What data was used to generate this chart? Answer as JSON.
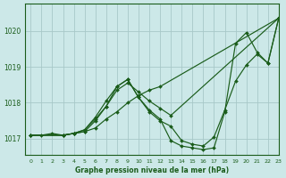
{
  "title": "Graphe pression niveau de la mer (hPa)",
  "bg_color": "#cce8e8",
  "grid_color": "#a8c8c8",
  "line_color": "#1a5c1a",
  "xlim": [
    -0.5,
    23
  ],
  "ylim": [
    1016.55,
    1020.75
  ],
  "yticks": [
    1017,
    1018,
    1019,
    1020
  ],
  "xticks": [
    0,
    1,
    2,
    3,
    4,
    5,
    6,
    7,
    8,
    9,
    10,
    11,
    12,
    13,
    14,
    15,
    16,
    17,
    18,
    19,
    20,
    21,
    22,
    23
  ],
  "series": [
    {
      "x": [
        0,
        1,
        2,
        3,
        4,
        5,
        6,
        7,
        8,
        9,
        10,
        11,
        12,
        23
      ],
      "y": [
        1017.1,
        1017.1,
        1017.15,
        1017.1,
        1017.15,
        1017.2,
        1017.3,
        1017.55,
        1017.75,
        1018.0,
        1018.2,
        1018.35,
        1018.45,
        1020.35
      ]
    },
    {
      "x": [
        0,
        3,
        4,
        5,
        6,
        7,
        8,
        9,
        10,
        11,
        12,
        13,
        23
      ],
      "y": [
        1017.1,
        1017.1,
        1017.15,
        1017.2,
        1017.5,
        1017.9,
        1018.35,
        1018.55,
        1018.3,
        1018.05,
        1017.85,
        1017.65,
        1020.35
      ]
    },
    {
      "x": [
        0,
        3,
        4,
        5,
        6,
        7,
        8,
        9,
        10,
        11,
        12,
        13,
        14,
        15,
        16,
        17,
        18,
        19,
        20,
        21,
        22,
        23
      ],
      "y": [
        1017.1,
        1017.1,
        1017.15,
        1017.25,
        1017.6,
        1018.05,
        1018.45,
        1018.65,
        1018.15,
        1017.75,
        1017.5,
        1017.35,
        1016.95,
        1016.85,
        1016.8,
        1017.05,
        1017.8,
        1018.6,
        1019.05,
        1019.35,
        1019.1,
        1020.35
      ]
    },
    {
      "x": [
        0,
        3,
        4,
        5,
        6,
        7,
        8,
        9,
        10,
        11,
        12,
        13,
        14,
        15,
        16,
        17,
        18,
        19,
        20,
        21,
        22,
        23
      ],
      "y": [
        1017.1,
        1017.1,
        1017.15,
        1017.25,
        1017.55,
        1017.9,
        1018.45,
        1018.65,
        1018.15,
        1017.8,
        1017.55,
        1016.95,
        1016.8,
        1016.75,
        1016.7,
        1016.75,
        1017.75,
        1019.65,
        1019.95,
        1019.4,
        1019.1,
        1020.35
      ]
    }
  ]
}
